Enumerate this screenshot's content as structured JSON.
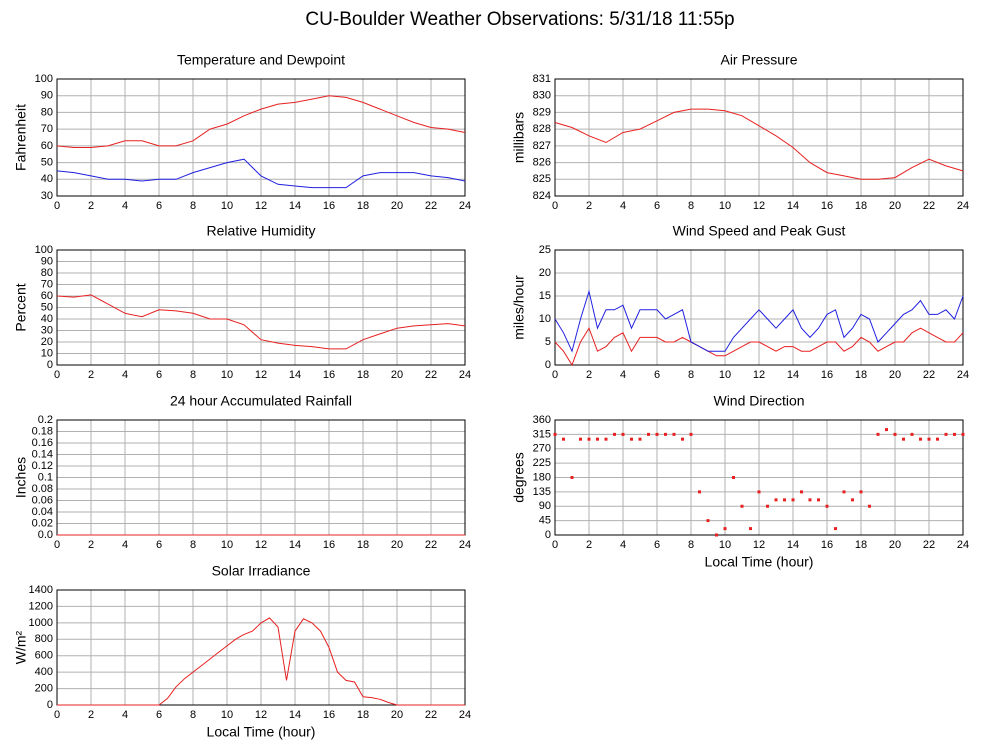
{
  "title": "CU-Boulder Weather Observations: 5/31/18 11:55p",
  "chart_data": [
    {
      "type": "line",
      "title": "Temperature and Dewpoint",
      "ylabel": "Fahrenheit",
      "x": [
        0,
        1,
        2,
        3,
        4,
        5,
        6,
        7,
        8,
        9,
        10,
        11,
        12,
        13,
        14,
        15,
        16,
        17,
        18,
        19,
        20,
        21,
        22,
        23,
        24
      ],
      "series": [
        {
          "color": "#e82020",
          "values": [
            60,
            59,
            59,
            60,
            63,
            63,
            60,
            60,
            63,
            70,
            73,
            78,
            82,
            85,
            86,
            88,
            90,
            89,
            86,
            82,
            78,
            74,
            71,
            70,
            68
          ]
        },
        {
          "color": "#2020e0",
          "values": [
            45,
            44,
            42,
            40,
            40,
            39,
            40,
            40,
            44,
            47,
            50,
            52,
            42,
            37,
            36,
            35,
            35,
            35,
            42,
            44,
            44,
            44,
            42,
            41,
            39
          ]
        }
      ],
      "xlim": [
        0,
        24
      ],
      "xticks": [
        0,
        2,
        4,
        6,
        8,
        10,
        12,
        14,
        16,
        18,
        20,
        22,
        24
      ],
      "ylim": [
        30,
        100
      ],
      "yticks": [
        30,
        40,
        50,
        60,
        70,
        80,
        90,
        100
      ],
      "grid": true
    },
    {
      "type": "line",
      "title": "Air Pressure",
      "ylabel": "millibars",
      "x": [
        0,
        1,
        2,
        3,
        4,
        5,
        6,
        7,
        8,
        9,
        10,
        11,
        12,
        13,
        14,
        15,
        16,
        17,
        18,
        19,
        20,
        21,
        22,
        23,
        24
      ],
      "series": [
        {
          "color": "#e82020",
          "values": [
            828.4,
            828.1,
            827.6,
            827.2,
            827.8,
            828.0,
            828.5,
            829.0,
            829.2,
            829.2,
            829.1,
            828.8,
            828.2,
            827.6,
            826.9,
            826.0,
            825.4,
            825.2,
            825.0,
            825.0,
            825.1,
            825.7,
            826.2,
            825.8,
            825.5
          ]
        }
      ],
      "xlim": [
        0,
        24
      ],
      "xticks": [
        0,
        2,
        4,
        6,
        8,
        10,
        12,
        14,
        16,
        18,
        20,
        22,
        24
      ],
      "ylim": [
        824,
        831
      ],
      "yticks": [
        824,
        825,
        826,
        827,
        828,
        829,
        830,
        831
      ],
      "grid": true
    },
    {
      "type": "line",
      "title": "Relative Humidity",
      "ylabel": "Percent",
      "x": [
        0,
        1,
        2,
        3,
        4,
        5,
        6,
        7,
        8,
        9,
        10,
        11,
        12,
        13,
        14,
        15,
        16,
        17,
        18,
        19,
        20,
        21,
        22,
        23,
        24
      ],
      "series": [
        {
          "color": "#e82020",
          "values": [
            60,
            59,
            61,
            53,
            45,
            42,
            48,
            47,
            45,
            40,
            40,
            35,
            22,
            19,
            17,
            16,
            14,
            14,
            22,
            27,
            32,
            34,
            35,
            36,
            34
          ]
        }
      ],
      "xlim": [
        0,
        24
      ],
      "xticks": [
        0,
        2,
        4,
        6,
        8,
        10,
        12,
        14,
        16,
        18,
        20,
        22,
        24
      ],
      "ylim": [
        0,
        100
      ],
      "yticks": [
        0,
        10,
        20,
        30,
        40,
        50,
        60,
        70,
        80,
        90,
        100
      ],
      "grid": true
    },
    {
      "type": "line",
      "title": "Wind Speed and Peak Gust",
      "ylabel": "miles/hour",
      "x": [
        0,
        0.5,
        1,
        1.5,
        2,
        2.5,
        3,
        3.5,
        4,
        4.5,
        5,
        5.5,
        6,
        6.5,
        7,
        7.5,
        8,
        8.5,
        9,
        9.5,
        10,
        10.5,
        11,
        11.5,
        12,
        12.5,
        13,
        13.5,
        14,
        14.5,
        15,
        15.5,
        16,
        16.5,
        17,
        17.5,
        18,
        18.5,
        19,
        19.5,
        20,
        20.5,
        21,
        21.5,
        22,
        22.5,
        23,
        23.5,
        24
      ],
      "series": [
        {
          "color": "#e82020",
          "values": [
            5,
            3,
            0,
            5,
            8,
            3,
            4,
            6,
            7,
            3,
            6,
            6,
            6,
            5,
            5,
            6,
            5,
            4,
            3,
            2,
            2,
            3,
            4,
            5,
            5,
            4,
            3,
            4,
            4,
            3,
            3,
            4,
            5,
            5,
            3,
            4,
            6,
            5,
            3,
            4,
            5,
            5,
            7,
            8,
            7,
            6,
            5,
            5,
            7
          ]
        },
        {
          "color": "#2020e0",
          "values": [
            10,
            7,
            3,
            10,
            16,
            8,
            12,
            12,
            13,
            8,
            12,
            12,
            12,
            10,
            11,
            12,
            5,
            4,
            3,
            3,
            3,
            6,
            8,
            10,
            12,
            10,
            8,
            10,
            12,
            8,
            6,
            8,
            11,
            12,
            6,
            8,
            11,
            10,
            5,
            7,
            9,
            11,
            12,
            14,
            11,
            11,
            12,
            10,
            15
          ]
        }
      ],
      "xlim": [
        0,
        24
      ],
      "xticks": [
        0,
        2,
        4,
        6,
        8,
        10,
        12,
        14,
        16,
        18,
        20,
        22,
        24
      ],
      "ylim": [
        0,
        25
      ],
      "yticks": [
        0,
        5,
        10,
        15,
        20,
        25
      ],
      "grid": true
    },
    {
      "type": "line",
      "title": "24 hour Accumulated Rainfall",
      "ylabel": "Inches",
      "x": [
        0,
        1,
        2,
        3,
        4,
        5,
        6,
        7,
        8,
        9,
        10,
        11,
        12,
        13,
        14,
        15,
        16,
        17,
        18,
        19,
        20,
        21,
        22,
        23,
        24
      ],
      "series": [
        {
          "color": "#e82020",
          "values": [
            0,
            0,
            0,
            0,
            0,
            0,
            0,
            0,
            0,
            0,
            0,
            0,
            0,
            0,
            0,
            0,
            0,
            0,
            0,
            0,
            0,
            0,
            0,
            0,
            0
          ]
        }
      ],
      "xlim": [
        0,
        24
      ],
      "xticks": [
        0,
        2,
        4,
        6,
        8,
        10,
        12,
        14,
        16,
        18,
        20,
        22,
        24
      ],
      "ylim": [
        0,
        0.2
      ],
      "yticks": [
        {
          "value": 0,
          "label": "0.0"
        },
        0.02,
        0.04,
        0.06,
        0.08,
        0.1,
        0.12,
        0.14,
        0.16,
        0.18,
        0.2
      ],
      "grid": true
    },
    {
      "type": "scatter",
      "title": "Wind Direction",
      "ylabel": "degrees",
      "xlabel": "Local Time (hour)",
      "x": [
        0,
        0.5,
        1,
        1.5,
        2,
        2.5,
        3,
        3.5,
        4,
        4.5,
        5,
        5.5,
        6,
        6.5,
        7,
        7.5,
        8,
        8.5,
        9,
        9.5,
        10,
        10.5,
        11,
        11.5,
        12,
        12.5,
        13,
        13.5,
        14,
        14.5,
        15,
        15.5,
        16,
        16.5,
        17,
        17.5,
        18,
        18.5,
        19,
        19.5,
        20,
        20.5,
        21,
        21.5,
        22,
        22.5,
        23,
        23.5,
        24
      ],
      "series": [
        {
          "color": "#e82020",
          "values": [
            315,
            300,
            180,
            300,
            300,
            300,
            300,
            315,
            315,
            300,
            300,
            315,
            315,
            315,
            315,
            300,
            315,
            135,
            45,
            0,
            20,
            180,
            90,
            20,
            135,
            90,
            110,
            110,
            110,
            135,
            110,
            110,
            90,
            20,
            135,
            110,
            135,
            90,
            315,
            330,
            315,
            300,
            315,
            300,
            300,
            300,
            315,
            315,
            315
          ]
        }
      ],
      "xlim": [
        0,
        24
      ],
      "xticks": [
        0,
        2,
        4,
        6,
        8,
        10,
        12,
        14,
        16,
        18,
        20,
        22,
        24
      ],
      "ylim": [
        0,
        360
      ],
      "yticks": [
        0,
        45,
        90,
        135,
        180,
        225,
        270,
        315,
        360
      ],
      "grid": true
    },
    {
      "type": "line",
      "title": "Solar Irradiance",
      "ylabel": "W/m²",
      "xlabel": "Local Time (hour)",
      "x": [
        0,
        0.5,
        1,
        1.5,
        2,
        2.5,
        3,
        3.5,
        4,
        4.5,
        5,
        5.5,
        6,
        6.5,
        7,
        7.5,
        8,
        8.5,
        9,
        9.5,
        10,
        10.5,
        11,
        11.5,
        12,
        12.5,
        13,
        13.5,
        14,
        14.5,
        15,
        15.5,
        16,
        16.5,
        17,
        17.5,
        18,
        18.5,
        19,
        19.5,
        20,
        20.5,
        21,
        21.5,
        22,
        22.5,
        23,
        23.5,
        24
      ],
      "series": [
        {
          "color": "#e82020",
          "values": [
            0,
            0,
            0,
            0,
            0,
            0,
            0,
            0,
            0,
            0,
            0,
            0,
            0,
            80,
            220,
            320,
            400,
            480,
            560,
            640,
            720,
            800,
            860,
            900,
            1000,
            1060,
            950,
            300,
            900,
            1050,
            1000,
            900,
            700,
            400,
            300,
            280,
            100,
            90,
            70,
            30,
            0,
            0,
            0,
            0,
            0,
            0,
            0,
            0,
            0
          ]
        }
      ],
      "xlim": [
        0,
        24
      ],
      "xticks": [
        0,
        2,
        4,
        6,
        8,
        10,
        12,
        14,
        16,
        18,
        20,
        22,
        24
      ],
      "ylim": [
        0,
        1400
      ],
      "yticks": [
        0,
        200,
        400,
        600,
        800,
        1000,
        1200,
        1400
      ],
      "grid": true
    }
  ]
}
